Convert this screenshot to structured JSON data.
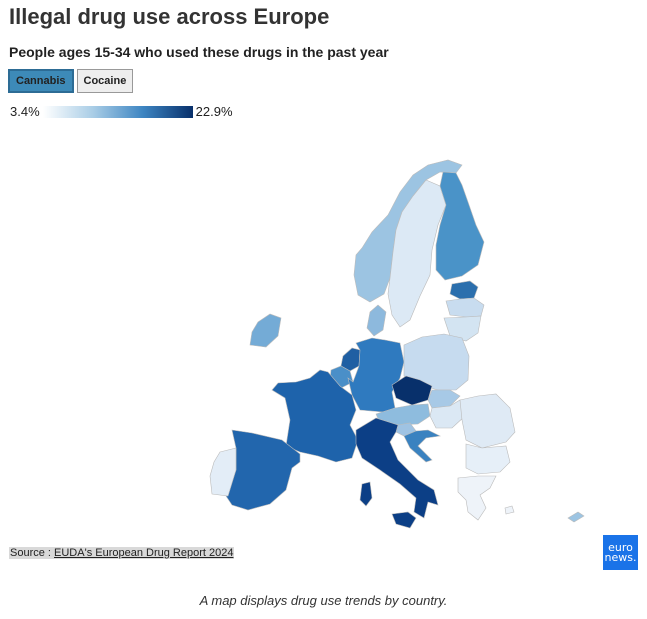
{
  "header": {
    "title": "Illegal drug use across Europe",
    "subtitle": "People ages 15-34 who used these drugs in the past year"
  },
  "tabs": [
    {
      "label": "Cannabis",
      "active": true
    },
    {
      "label": "Cocaine",
      "active": false
    }
  ],
  "legend": {
    "min": "3.4%",
    "max": "22.9%",
    "colors": [
      "#ffffff",
      "#a9cde6",
      "#3d85c2",
      "#08306b"
    ]
  },
  "map": {
    "countries": [
      {
        "name": "Norway",
        "color": "#9cc4e2"
      },
      {
        "name": "Sweden",
        "color": "#dce9f5"
      },
      {
        "name": "Finland",
        "color": "#4a93c8"
      },
      {
        "name": "Estonia",
        "color": "#2b6fad"
      },
      {
        "name": "Latvia",
        "color": "#c8dcef"
      },
      {
        "name": "Lithuania",
        "color": "#d3e4f2"
      },
      {
        "name": "Ireland",
        "color": "#74abd6"
      },
      {
        "name": "Denmark",
        "color": "#8db9dd"
      },
      {
        "name": "Netherlands",
        "color": "#1f5fa3"
      },
      {
        "name": "Belgium",
        "color": "#4a8fc8"
      },
      {
        "name": "Germany",
        "color": "#2f7abf"
      },
      {
        "name": "Poland",
        "color": "#c6dbef"
      },
      {
        "name": "Czechia",
        "color": "#08306b"
      },
      {
        "name": "Slovakia",
        "color": "#a7c9e6"
      },
      {
        "name": "Austria",
        "color": "#8ebcde"
      },
      {
        "name": "Hungary",
        "color": "#dbe8f4"
      },
      {
        "name": "France",
        "color": "#1e63ab"
      },
      {
        "name": "Spain",
        "color": "#2266ad"
      },
      {
        "name": "Portugal",
        "color": "#e3edf7"
      },
      {
        "name": "Italy",
        "color": "#0c3f86"
      },
      {
        "name": "Slovenia",
        "color": "#9fc3e3"
      },
      {
        "name": "Croatia",
        "color": "#3a82c0"
      },
      {
        "name": "Romania",
        "color": "#dfeaf5"
      },
      {
        "name": "Bulgaria",
        "color": "#e6eff8"
      },
      {
        "name": "Greece",
        "color": "#eef3f9"
      },
      {
        "name": "Cyprus",
        "color": "#9cc4e2"
      }
    ]
  },
  "source": {
    "prefix": "Source : ",
    "link_text": "EUDA's European Drug Report 2024"
  },
  "logo": {
    "line1": "euro",
    "line2": "news."
  },
  "caption": "A map displays drug use trends by country."
}
